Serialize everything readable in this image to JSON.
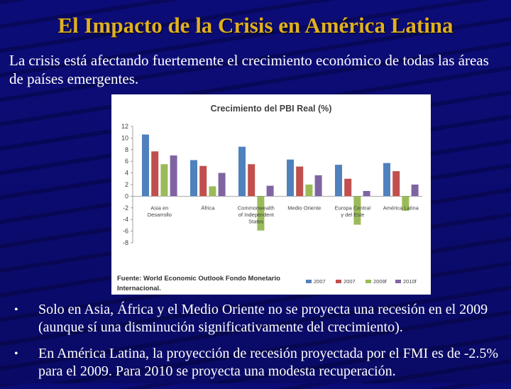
{
  "slide": {
    "title": "El Impacto de la Crisis en América Latina",
    "intro": "La crisis está afectando fuertemente el crecimiento económico de todas las áreas de países emergentes.",
    "bullets": [
      "Solo en Asia, África y el Medio Oriente no se proyecta una recesión en el 2009 (aunque sí una disminución significativamente del crecimiento).",
      "En América Latina, la proyección de recesión proyectada por el FMI es de -2.5% para el 2009. Para 2010 se proyecta una modesta recuperación."
    ],
    "bullet_glyph": "•"
  },
  "chart_data": {
    "type": "bar",
    "title": "Crecimiento del PBI Real (%)",
    "source": "Fuente: World Economic Outlook  Fondo Monetario Internacional.",
    "categories": [
      [
        "Asia en",
        "Desarrollo"
      ],
      [
        "África"
      ],
      [
        "Commonwealth",
        "of Independent",
        "States"
      ],
      [
        "Medio Oriente"
      ],
      [
        "Europa Central",
        "y del Este"
      ],
      [
        "América Latina"
      ]
    ],
    "series": [
      {
        "name": "2007",
        "color": "#4f81bd",
        "values": [
          10.6,
          6.2,
          8.5,
          6.3,
          5.4,
          5.7
        ]
      },
      {
        "name": "2007",
        "color": "#c0504d",
        "values": [
          7.7,
          5.2,
          5.5,
          5.1,
          3.0,
          4.3
        ]
      },
      {
        "name": "2009f",
        "color": "#9bbb59",
        "values": [
          5.5,
          1.7,
          -5.9,
          2.0,
          -4.9,
          -2.5
        ]
      },
      {
        "name": "2010f",
        "color": "#8064a2",
        "values": [
          7.0,
          4.0,
          1.8,
          3.6,
          0.9,
          2.0
        ]
      }
    ],
    "ylim": [
      -8,
      12
    ],
    "yticks": [
      12,
      10,
      8,
      6,
      4,
      2,
      0,
      -2,
      -4,
      -6,
      -8
    ],
    "grid": false,
    "legend_position": "bottom-right"
  }
}
